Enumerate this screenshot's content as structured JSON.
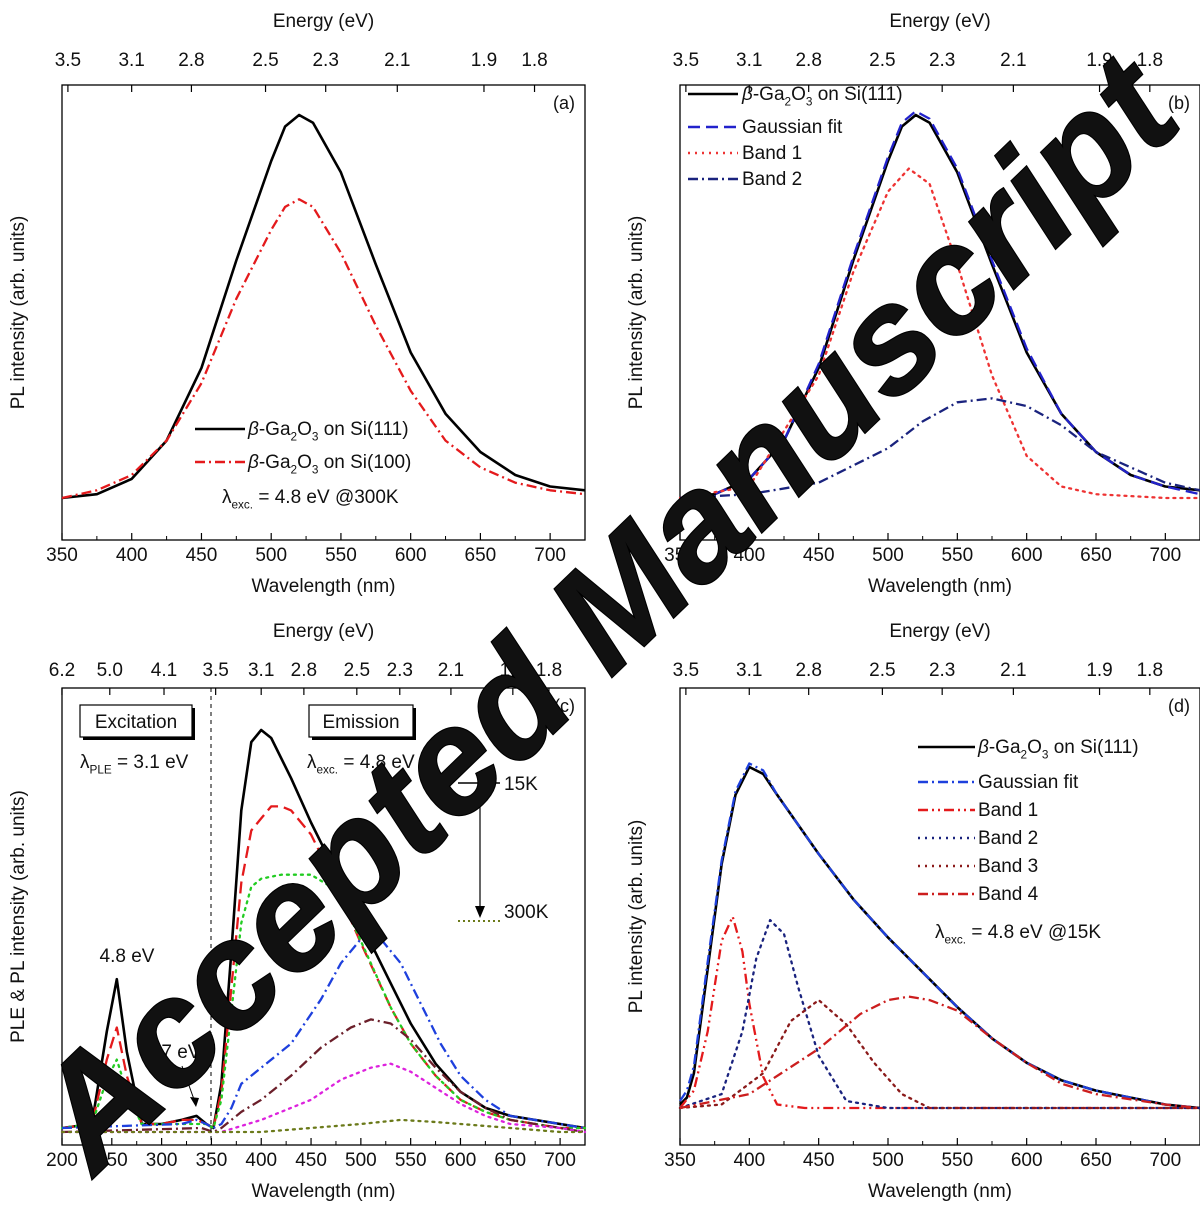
{
  "watermark": "Accepted Manuscript",
  "chart_data": [
    {
      "panel_label": "(a)",
      "type": "line",
      "xlabel": "Wavelength (nm)",
      "ylabel": "PL intensity (arb. units)",
      "top_axis_label": "Energy (eV)",
      "xlim": [
        350,
        725
      ],
      "ylim": [
        0,
        1.05
      ],
      "x_ticks": [
        "350",
        "400",
        "450",
        "500",
        "550",
        "600",
        "650",
        "700"
      ],
      "top_ticks": [
        "3.5",
        "3.1",
        "2.8",
        "2.5",
        "2.3",
        "2.1",
        "1.9",
        "1.8"
      ],
      "annotations": [
        {
          "text": "λexc. = 4.8 eV @300K"
        }
      ],
      "series": [
        {
          "name": "β-Ga2O3 on Si(111)",
          "style": "solid",
          "color": "#000000",
          "x": [
            350,
            375,
            400,
            425,
            450,
            475,
            500,
            510,
            520,
            530,
            550,
            575,
            600,
            625,
            650,
            675,
            700,
            725
          ],
          "y": [
            0.0,
            0.01,
            0.05,
            0.15,
            0.34,
            0.62,
            0.88,
            0.97,
            1.0,
            0.98,
            0.85,
            0.61,
            0.38,
            0.22,
            0.12,
            0.06,
            0.03,
            0.02
          ]
        },
        {
          "name": "β-Ga2O3 on Si(100)",
          "style": "dashdot",
          "color": "#e41a1c",
          "x": [
            350,
            375,
            400,
            425,
            450,
            475,
            500,
            510,
            520,
            530,
            550,
            575,
            600,
            625,
            650,
            675,
            700,
            725
          ],
          "y": [
            0.0,
            0.02,
            0.06,
            0.15,
            0.3,
            0.52,
            0.7,
            0.76,
            0.78,
            0.76,
            0.64,
            0.45,
            0.28,
            0.15,
            0.08,
            0.04,
            0.02,
            0.01
          ]
        }
      ]
    },
    {
      "panel_label": "(b)",
      "type": "line",
      "xlabel": "Wavelength (nm)",
      "ylabel": "PL intensity (arb. units)",
      "top_axis_label": "Energy (eV)",
      "xlim": [
        350,
        725
      ],
      "ylim": [
        0,
        1.05
      ],
      "x_ticks": [
        "350",
        "400",
        "450",
        "500",
        "550",
        "600",
        "650",
        "700"
      ],
      "top_ticks": [
        "3.5",
        "3.1",
        "2.8",
        "2.5",
        "2.3",
        "2.1",
        "1.9",
        "1.8"
      ],
      "series": [
        {
          "name": "β-Ga2O3 on Si(111)",
          "style": "solid",
          "color": "#000000",
          "x": [
            350,
            375,
            400,
            425,
            450,
            475,
            500,
            510,
            520,
            530,
            550,
            575,
            600,
            625,
            650,
            675,
            700,
            725
          ],
          "y": [
            0.0,
            0.01,
            0.05,
            0.15,
            0.34,
            0.62,
            0.88,
            0.97,
            1.0,
            0.98,
            0.85,
            0.61,
            0.38,
            0.22,
            0.12,
            0.06,
            0.03,
            0.02
          ]
        },
        {
          "name": "Gaussian fit",
          "style": "dashed",
          "color": "#2222cc",
          "x": [
            350,
            375,
            400,
            425,
            450,
            475,
            500,
            510,
            520,
            530,
            550,
            575,
            600,
            625,
            650,
            675,
            700,
            725
          ],
          "y": [
            0.0,
            0.01,
            0.05,
            0.15,
            0.35,
            0.63,
            0.89,
            0.98,
            1.01,
            0.99,
            0.86,
            0.62,
            0.39,
            0.22,
            0.12,
            0.06,
            0.03,
            0.01
          ]
        },
        {
          "name": "Band 1",
          "style": "dotted",
          "color": "#ee3333",
          "x": [
            350,
            400,
            450,
            475,
            500,
            515,
            530,
            550,
            575,
            600,
            625,
            650,
            700,
            725
          ],
          "y": [
            0.0,
            0.03,
            0.32,
            0.59,
            0.8,
            0.86,
            0.82,
            0.61,
            0.32,
            0.11,
            0.03,
            0.01,
            0.0,
            0.0
          ]
        },
        {
          "name": "Band 2",
          "style": "dashdot",
          "color": "#1a237e",
          "x": [
            350,
            400,
            450,
            500,
            525,
            550,
            575,
            600,
            625,
            650,
            700,
            725
          ],
          "y": [
            0.0,
            0.01,
            0.04,
            0.13,
            0.2,
            0.25,
            0.26,
            0.24,
            0.19,
            0.12,
            0.04,
            0.02
          ]
        }
      ]
    },
    {
      "panel_label": "(c)",
      "type": "line",
      "xlabel": "Wavelength (nm)",
      "ylabel": "PLE & PL intensity (arb. units)",
      "top_axis_label": "Energy (eV)",
      "xlim": [
        200,
        725
      ],
      "ylim": [
        0,
        1.05
      ],
      "x_ticks": [
        "200",
        "250",
        "300",
        "350",
        "400",
        "450",
        "500",
        "550",
        "600",
        "650",
        "700"
      ],
      "top_ticks": [
        "6.2",
        "5.0",
        "4.1",
        "3.5",
        "3.1",
        "2.8",
        "2.5",
        "2.3",
        "2.1",
        "1.9",
        "1.8"
      ],
      "boxes": [
        "Excitation",
        "Emission"
      ],
      "annotations": [
        {
          "text": "λPLE = 3.1 eV"
        },
        {
          "text": "λexc. = 4.8 eV"
        },
        {
          "text": "4.8 eV"
        },
        {
          "text": "3.7 eV"
        },
        {
          "text": "15K"
        },
        {
          "text": "300K"
        }
      ],
      "series": [
        {
          "style": "solid",
          "color": "#000000",
          "x": [
            200,
            230,
            245,
            255,
            265,
            280,
            300,
            320,
            335,
            345,
            352,
            360,
            370,
            380,
            390,
            400,
            410,
            430,
            450,
            470,
            500,
            530,
            550,
            575,
            600,
            625,
            650,
            700,
            725
          ],
          "y": [
            0.01,
            0.02,
            0.25,
            0.38,
            0.2,
            0.02,
            0.02,
            0.03,
            0.04,
            0.02,
            0.01,
            0.12,
            0.45,
            0.8,
            0.97,
            1.0,
            0.98,
            0.88,
            0.77,
            0.67,
            0.52,
            0.37,
            0.27,
            0.17,
            0.1,
            0.06,
            0.04,
            0.02,
            0.01
          ]
        },
        {
          "style": "dashed",
          "color": "#e41a1c",
          "x": [
            200,
            230,
            245,
            255,
            265,
            280,
            300,
            320,
            335,
            345,
            352,
            360,
            370,
            380,
            390,
            400,
            410,
            420,
            430,
            450,
            470,
            500,
            530,
            550,
            575,
            600,
            625,
            650,
            700,
            725
          ],
          "y": [
            0.01,
            0.02,
            0.18,
            0.26,
            0.14,
            0.02,
            0.02,
            0.03,
            0.03,
            0.02,
            0.01,
            0.1,
            0.36,
            0.62,
            0.75,
            0.78,
            0.81,
            0.81,
            0.8,
            0.74,
            0.64,
            0.47,
            0.31,
            0.22,
            0.14,
            0.08,
            0.05,
            0.03,
            0.01,
            0.01
          ]
        },
        {
          "style": "dotted",
          "color": "#22cc22",
          "x": [
            200,
            230,
            245,
            255,
            265,
            280,
            300,
            320,
            335,
            345,
            352,
            360,
            370,
            380,
            390,
            400,
            420,
            450,
            470,
            490,
            510,
            530,
            550,
            575,
            600,
            625,
            650,
            700,
            725
          ],
          "y": [
            0.01,
            0.02,
            0.13,
            0.18,
            0.1,
            0.02,
            0.02,
            0.02,
            0.02,
            0.02,
            0.01,
            0.08,
            0.3,
            0.52,
            0.61,
            0.63,
            0.64,
            0.64,
            0.61,
            0.53,
            0.42,
            0.31,
            0.22,
            0.14,
            0.08,
            0.05,
            0.03,
            0.01,
            0.01
          ]
        },
        {
          "style": "dashdot",
          "color": "#1e40dd",
          "x": [
            200,
            320,
            335,
            345,
            352,
            360,
            370,
            380,
            400,
            430,
            460,
            480,
            500,
            510,
            520,
            540,
            560,
            580,
            600,
            625,
            650,
            700,
            725
          ],
          "y": [
            0.01,
            0.02,
            0.03,
            0.02,
            0.01,
            0.02,
            0.06,
            0.12,
            0.16,
            0.22,
            0.33,
            0.42,
            0.48,
            0.49,
            0.48,
            0.42,
            0.32,
            0.22,
            0.14,
            0.08,
            0.04,
            0.02,
            0.01
          ]
        },
        {
          "style": "dashdot",
          "color": "#6b1f2a",
          "x": [
            200,
            340,
            352,
            360,
            380,
            400,
            430,
            460,
            490,
            510,
            530,
            550,
            575,
            600,
            625,
            650,
            700,
            725
          ],
          "y": [
            0.0,
            0.01,
            0.0,
            0.01,
            0.05,
            0.08,
            0.14,
            0.21,
            0.26,
            0.28,
            0.27,
            0.23,
            0.16,
            0.1,
            0.06,
            0.03,
            0.01,
            0.0
          ]
        },
        {
          "style": "dotted",
          "color": "#dd22dd",
          "x": [
            200,
            360,
            400,
            450,
            480,
            510,
            530,
            550,
            575,
            600,
            625,
            650,
            700,
            725
          ],
          "y": [
            0.0,
            0.0,
            0.03,
            0.08,
            0.13,
            0.16,
            0.17,
            0.15,
            0.11,
            0.07,
            0.04,
            0.02,
            0.01,
            0.0
          ]
        },
        {
          "style": "dotted",
          "color": "#6b7a1a",
          "x": [
            200,
            400,
            450,
            500,
            540,
            575,
            600,
            650,
            700,
            725
          ],
          "y": [
            0.0,
            0.0,
            0.01,
            0.02,
            0.03,
            0.025,
            0.02,
            0.01,
            0.0,
            0.0
          ]
        }
      ]
    },
    {
      "panel_label": "(d)",
      "type": "line",
      "xlabel": "Wavelength (nm)",
      "ylabel": "PL intensity (arb. units)",
      "top_axis_label": "Energy (eV)",
      "xlim": [
        350,
        725
      ],
      "ylim": [
        0,
        1.05
      ],
      "x_ticks": [
        "350",
        "400",
        "450",
        "500",
        "550",
        "600",
        "650",
        "700"
      ],
      "top_ticks": [
        "3.5",
        "3.1",
        "2.8",
        "2.5",
        "2.3",
        "2.1",
        "1.9",
        "1.8"
      ],
      "annotations": [
        {
          "text": "λexc. = 4.8 eV @15K"
        }
      ],
      "series": [
        {
          "name": "β-Ga2O3 on Si(111)",
          "style": "solid",
          "color": "#000000",
          "x": [
            350,
            355,
            360,
            370,
            380,
            390,
            400,
            410,
            420,
            450,
            475,
            500,
            525,
            550,
            575,
            600,
            625,
            650,
            675,
            700,
            725
          ],
          "y": [
            0.01,
            0.03,
            0.1,
            0.4,
            0.7,
            0.9,
            0.98,
            0.96,
            0.9,
            0.73,
            0.6,
            0.49,
            0.39,
            0.29,
            0.2,
            0.13,
            0.08,
            0.05,
            0.03,
            0.01,
            0.0
          ]
        },
        {
          "name": "Gaussian fit",
          "style": "dashdot",
          "color": "#1e40dd",
          "x": [
            350,
            355,
            360,
            370,
            380,
            390,
            400,
            410,
            420,
            450,
            475,
            500,
            525,
            550,
            575,
            600,
            625,
            650,
            675,
            700,
            725
          ],
          "y": [
            0.02,
            0.05,
            0.12,
            0.42,
            0.71,
            0.91,
            0.99,
            0.97,
            0.9,
            0.73,
            0.6,
            0.49,
            0.39,
            0.29,
            0.2,
            0.13,
            0.08,
            0.05,
            0.03,
            0.01,
            0.0
          ]
        },
        {
          "name": "Band 1",
          "style": "dashdotdot",
          "color": "#e41a1c",
          "x": [
            350,
            360,
            370,
            380,
            388,
            395,
            400,
            410,
            420,
            440,
            725
          ],
          "y": [
            0.0,
            0.05,
            0.22,
            0.48,
            0.55,
            0.45,
            0.3,
            0.09,
            0.01,
            0.0,
            0.0
          ]
        },
        {
          "name": "Band 2",
          "style": "dotted",
          "color": "#1a237e",
          "x": [
            350,
            380,
            395,
            405,
            415,
            425,
            435,
            450,
            470,
            500,
            725
          ],
          "y": [
            0.0,
            0.04,
            0.22,
            0.43,
            0.54,
            0.5,
            0.35,
            0.15,
            0.02,
            0.0,
            0.0
          ]
        },
        {
          "name": "Band 3",
          "style": "dotted",
          "color": "#8b1a1a",
          "x": [
            350,
            380,
            410,
            430,
            450,
            470,
            490,
            510,
            530,
            725
          ],
          "y": [
            0.0,
            0.01,
            0.1,
            0.25,
            0.31,
            0.24,
            0.13,
            0.04,
            0.0,
            0.0
          ]
        },
        {
          "name": "Band 4",
          "style": "dashdot",
          "color": "#cc1e1e",
          "x": [
            350,
            400,
            450,
            480,
            500,
            515,
            530,
            550,
            575,
            600,
            625,
            650,
            700,
            725
          ],
          "y": [
            0.0,
            0.04,
            0.17,
            0.27,
            0.31,
            0.32,
            0.31,
            0.28,
            0.2,
            0.13,
            0.07,
            0.04,
            0.01,
            0.0
          ]
        }
      ]
    }
  ]
}
